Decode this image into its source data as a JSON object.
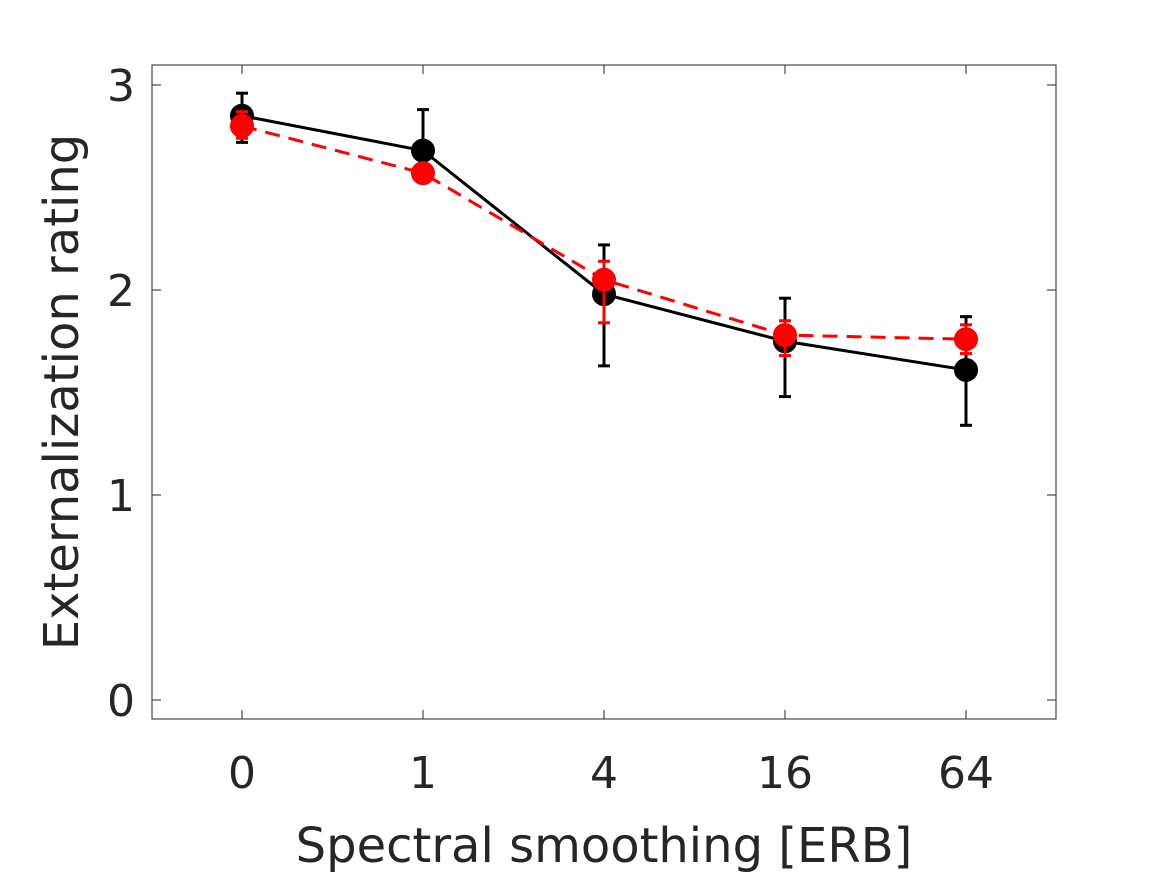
{
  "chart_data": {
    "type": "line",
    "title": "",
    "xlabel": "Spectral smoothing [ERB]",
    "ylabel": "Externalization rating",
    "categories": [
      "0",
      "1",
      "4",
      "16",
      "64"
    ],
    "ylim": [
      -0.1,
      3.1
    ],
    "yticks": [
      0,
      1,
      2,
      3
    ],
    "grid": false,
    "legend": "none",
    "series": [
      {
        "color": "#000000",
        "line_style": "solid",
        "values": [
          2.85,
          2.68,
          1.98,
          1.75,
          1.61
        ],
        "error_low": [
          2.72,
          2.58,
          1.63,
          1.48,
          1.34
        ],
        "error_high": [
          2.96,
          2.88,
          2.22,
          1.96,
          1.87
        ]
      },
      {
        "color": "#ff0000",
        "line_style": "dashed",
        "values": [
          2.8,
          2.57,
          2.05,
          1.78,
          1.76
        ],
        "error_low": [
          2.74,
          2.53,
          1.84,
          1.68,
          1.69
        ],
        "error_high": [
          2.87,
          2.61,
          2.14,
          1.85,
          1.83
        ]
      }
    ]
  }
}
